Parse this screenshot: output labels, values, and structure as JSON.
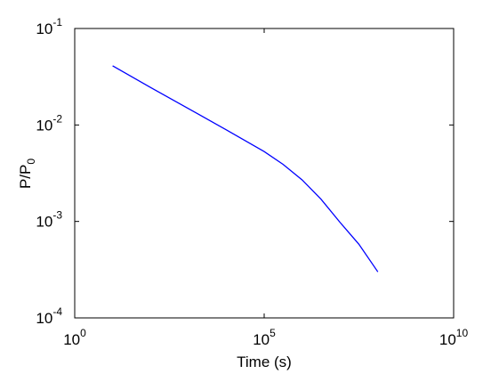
{
  "chart_data": {
    "type": "line",
    "xlabel": "Time (s)",
    "ylabel": "P/P",
    "ylabel_sub": "0",
    "log_x": true,
    "log_y": true,
    "xlim": [
      1,
      10000000000
    ],
    "ylim": [
      0.0001,
      0.1
    ],
    "xticks": [
      {
        "value": 1,
        "label": "10",
        "exp": "0"
      },
      {
        "value": 100000,
        "label": "10",
        "exp": "5"
      },
      {
        "value": 10000000000,
        "label": "10",
        "exp": "10"
      }
    ],
    "yticks": [
      {
        "value": 0.0001,
        "label": "10",
        "exp": "-4"
      },
      {
        "value": 0.001,
        "label": "10",
        "exp": "-3"
      },
      {
        "value": 0.01,
        "label": "10",
        "exp": "-2"
      },
      {
        "value": 0.1,
        "label": "10",
        "exp": "-1"
      }
    ],
    "x": [
      10,
      100,
      1000,
      10000,
      100000,
      316228,
      1000000,
      3162278,
      10000000,
      31622777,
      100000000
    ],
    "series": [
      {
        "color": "#0000ff",
        "values": [
          0.041,
          0.0245,
          0.0148,
          0.0089,
          0.0053,
          0.0039,
          0.0027,
          0.0017,
          0.00098,
          0.00058,
          0.0003
        ]
      }
    ]
  }
}
